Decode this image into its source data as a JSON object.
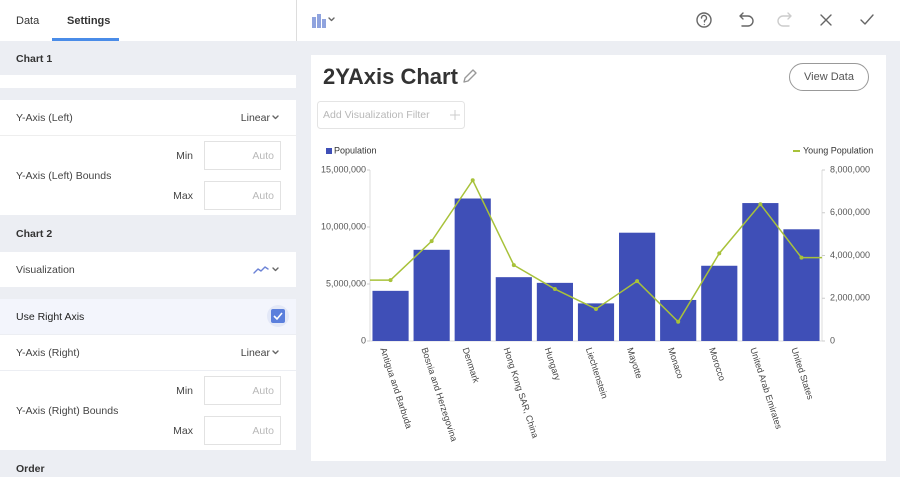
{
  "tabs": [
    "Data",
    "Settings"
  ],
  "settings": {
    "chart1": {
      "header": "Chart 1",
      "y_axis_left": {
        "label": "Y-Axis (Left)",
        "value": "Linear"
      },
      "bounds_left": {
        "label": "Y-Axis (Left) Bounds",
        "min_label": "Min",
        "min_placeholder": "Auto",
        "max_label": "Max",
        "max_placeholder": "Auto"
      }
    },
    "chart2": {
      "header": "Chart 2",
      "visualization": {
        "label": "Visualization"
      },
      "use_right_axis": {
        "label": "Use Right Axis"
      },
      "y_axis_right": {
        "label": "Y-Axis (Right)",
        "value": "Linear"
      },
      "bounds_right": {
        "label": "Y-Axis (Right) Bounds",
        "min_label": "Min",
        "min_placeholder": "Auto",
        "max_label": "Max",
        "max_placeholder": "Auto"
      }
    },
    "order": {
      "header": "Order"
    }
  },
  "view_data_button": "View Data",
  "filter_placeholder": "Add Visualization Filter",
  "chart_data": {
    "type": "combo",
    "title": "2YAxis Chart",
    "categories": [
      "Antigua and Barbuda",
      "Bosnia and Herzegovina",
      "Denmark",
      "Hong Kong SAR, China",
      "Hungary",
      "Liechtenstein",
      "Mayotte",
      "Monaco",
      "Morocco",
      "United Arab Emirates",
      "United States"
    ],
    "series": [
      {
        "name": "Population",
        "type": "bar",
        "color": "#3f4fb7",
        "values": [
          4400000,
          8000000,
          12500000,
          5600000,
          5100000,
          3300000,
          9500000,
          3600000,
          6600000,
          12100000,
          9800000
        ]
      },
      {
        "name": "Young Population",
        "type": "line",
        "axis": "y2",
        "color": "#a8c23a",
        "values": [
          2850000,
          4670000,
          7520000,
          3550000,
          2430000,
          1500000,
          2800000,
          900000,
          4100000,
          6400000,
          3900000
        ]
      }
    ],
    "ylim": [
      0,
      15000000
    ],
    "yticks": [
      0,
      {
        "value": 5000000,
        "label": "5,000,000"
      },
      {
        "value": 10000000,
        "label": "10,000,000"
      },
      {
        "value": 15000000,
        "label": "15,000,000"
      }
    ],
    "y2lim": [
      0,
      8000000
    ],
    "y2ticks": [
      0,
      {
        "value": 2000000,
        "label": "2,000,000"
      },
      {
        "value": 4000000,
        "label": "4,000,000"
      },
      {
        "value": 6000000,
        "label": "6,000,000"
      },
      {
        "value": 8000000,
        "label": "8,000,000"
      }
    ]
  }
}
